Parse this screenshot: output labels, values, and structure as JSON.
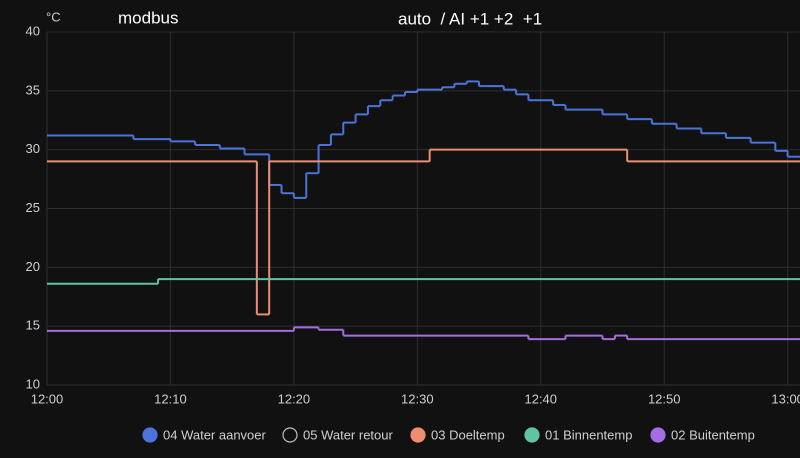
{
  "chart_data": {
    "type": "step-line",
    "title": "modbus",
    "subtitle": "auto  / AI +1 +2  +1",
    "y_unit": "°C",
    "xlim": [
      "12:00",
      "13:01"
    ],
    "xticks": [
      "12:00",
      "12:10",
      "12:20",
      "12:30",
      "12:40",
      "12:50",
      "13:00"
    ],
    "ylim": [
      10,
      40
    ],
    "yticks": [
      10,
      15,
      20,
      25,
      30,
      35,
      40
    ],
    "grid": true,
    "legend": "bottom",
    "series": [
      {
        "name": "04 Water aanvoer",
        "color": "#4a74d9",
        "x": [
          "12:00",
          "12:07",
          "12:10",
          "12:12",
          "12:14",
          "12:16",
          "12:18",
          "12:19",
          "12:20",
          "12:21",
          "12:22",
          "12:23",
          "12:24",
          "12:25",
          "12:26",
          "12:27",
          "12:28",
          "12:29",
          "12:30",
          "12:32",
          "12:33",
          "12:34",
          "12:35",
          "12:37",
          "12:38",
          "12:39",
          "12:41",
          "12:42",
          "12:45",
          "12:47",
          "12:49",
          "12:51",
          "12:53",
          "12:55",
          "12:57",
          "12:59",
          "13:00"
        ],
        "values": [
          31.2,
          30.9,
          30.7,
          30.4,
          30.1,
          29.6,
          27.0,
          26.3,
          25.9,
          28.0,
          30.4,
          31.3,
          32.3,
          33.0,
          33.7,
          34.2,
          34.6,
          34.9,
          35.1,
          35.3,
          35.6,
          35.8,
          35.4,
          35.1,
          34.7,
          34.2,
          33.8,
          33.4,
          33.0,
          32.6,
          32.2,
          31.8,
          31.4,
          31.0,
          30.6,
          29.9,
          29.4
        ]
      },
      {
        "name": "05 Water retour",
        "hidden": true
      },
      {
        "name": "03 Doeltemp",
        "color": "#f08c70",
        "x": [
          "12:00",
          "12:17",
          "12:18",
          "12:31",
          "12:47"
        ],
        "values": [
          29.0,
          16.0,
          29.0,
          30.0,
          29.0
        ]
      },
      {
        "name": "01 Binnentemp",
        "color": "#62c3a3",
        "x": [
          "12:00",
          "12:09"
        ],
        "values": [
          18.6,
          19.0
        ]
      },
      {
        "name": "02 Buitentemp",
        "color": "#a66ce2",
        "x": [
          "12:00",
          "12:20",
          "12:22",
          "12:24",
          "12:39",
          "12:42",
          "12:45",
          "12:46",
          "12:47"
        ],
        "values": [
          14.6,
          14.9,
          14.7,
          14.2,
          13.9,
          14.2,
          13.9,
          14.2,
          13.9
        ]
      }
    ]
  }
}
